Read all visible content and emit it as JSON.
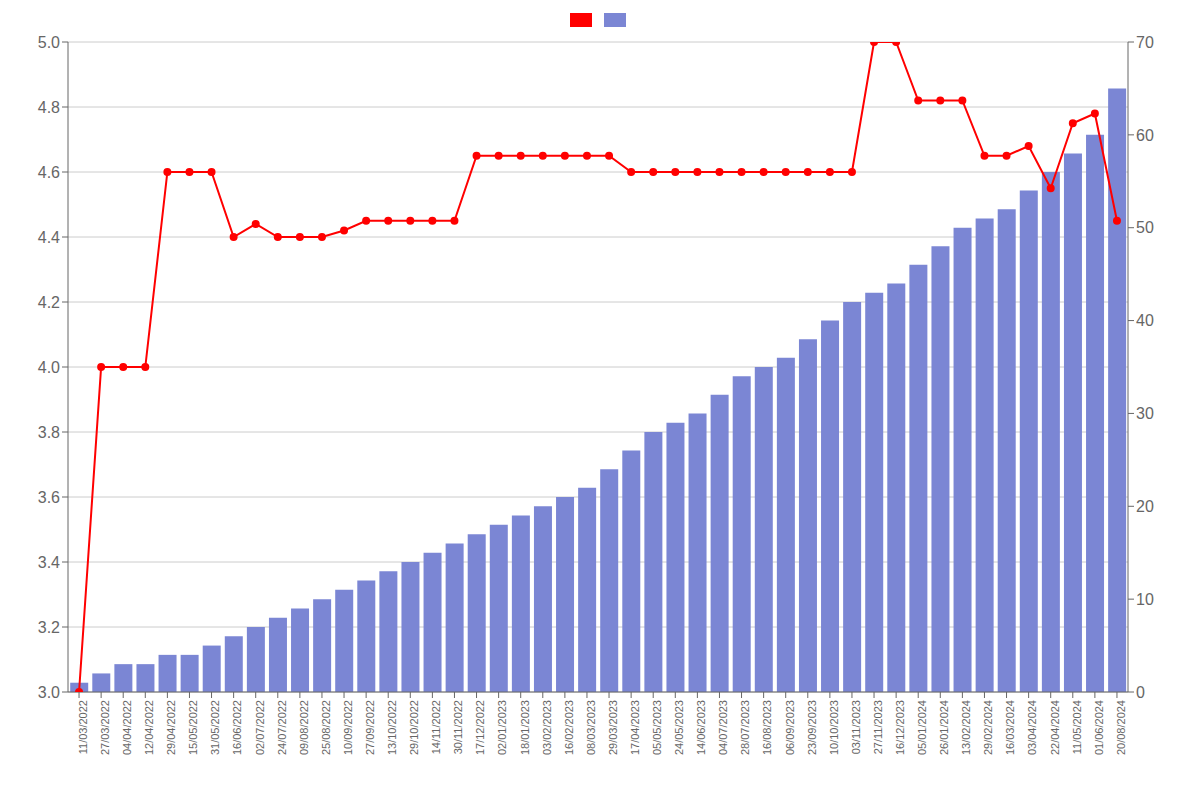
{
  "chart_data": {
    "type": "bar",
    "categories": [
      "11/03/2022",
      "27/03/2022",
      "04/04/2022",
      "12/04/2022",
      "29/04/2022",
      "15/05/2022",
      "31/05/2022",
      "16/06/2022",
      "02/07/2022",
      "24/07/2022",
      "09/08/2022",
      "25/08/2022",
      "10/09/2022",
      "27/09/2022",
      "13/10/2022",
      "29/10/2022",
      "14/11/2022",
      "30/11/2022",
      "17/12/2022",
      "02/01/2023",
      "18/01/2023",
      "03/02/2023",
      "16/02/2023",
      "08/03/2023",
      "29/03/2023",
      "17/04/2023",
      "05/05/2023",
      "24/05/2023",
      "14/06/2023",
      "04/07/2023",
      "28/07/2023",
      "16/08/2023",
      "06/09/2023",
      "23/09/2023",
      "10/10/2023",
      "03/11/2023",
      "27/11/2023",
      "16/12/2023",
      "05/01/2024",
      "26/01/2024",
      "13/02/2024",
      "29/02/2024",
      "16/03/2024",
      "03/04/2024",
      "22/04/2024",
      "11/05/2024",
      "01/06/2024",
      "20/08/2024"
    ],
    "series": [
      {
        "type": "line",
        "color": "#ff0000",
        "marker": "o",
        "line_style": "solid",
        "values": [
          3.0,
          4.0,
          4.0,
          4.0,
          4.6,
          4.6,
          4.6,
          4.4,
          4.44,
          4.4,
          4.4,
          4.4,
          4.42,
          4.45,
          4.45,
          4.45,
          4.45,
          4.45,
          4.65,
          4.65,
          4.65,
          4.65,
          4.65,
          4.65,
          4.65,
          4.6,
          4.6,
          4.6,
          4.6,
          4.6,
          4.6,
          4.6,
          4.6,
          4.6,
          4.6,
          4.6,
          5.0,
          5.0,
          4.82,
          4.82,
          4.82,
          4.65,
          4.65,
          4.68,
          4.55,
          4.75,
          4.78,
          4.45
        ]
      },
      {
        "type": "bar",
        "color": "#7b86d4",
        "axis": "y2",
        "values": [
          1,
          2,
          3,
          3,
          4,
          4,
          5,
          6,
          7,
          8,
          9,
          10,
          11,
          12,
          13,
          14,
          15,
          16,
          17,
          18,
          19,
          20,
          21,
          22,
          24,
          26,
          28,
          29,
          30,
          32,
          34,
          35,
          36,
          38,
          40,
          42,
          43,
          44,
          46,
          48,
          50,
          51,
          52,
          54,
          56,
          58,
          60,
          65
        ]
      }
    ],
    "ylim": [
      3.0,
      5.0
    ],
    "yticks": [
      {
        "value": 3.0,
        "label": "3.0"
      },
      3.2,
      3.4,
      3.6,
      3.8,
      {
        "value": 4.0,
        "label": "4.0"
      },
      4.2,
      4.4,
      4.6,
      4.8,
      {
        "value": 5.0,
        "label": "5.0"
      }
    ],
    "y2lim": [
      0,
      70
    ],
    "y2ticks": [
      0,
      10,
      20,
      30,
      40,
      50,
      60,
      70
    ],
    "grid": true,
    "legend": "upper center"
  }
}
